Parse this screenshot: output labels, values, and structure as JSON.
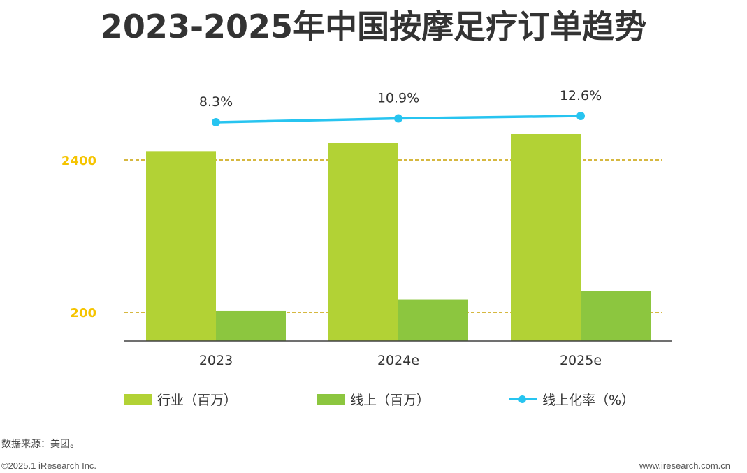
{
  "title": "2023-2025年中国按摩足疗订单趋势",
  "chart_data": {
    "type": "bar",
    "categories": [
      "2023",
      "2024e",
      "2025e"
    ],
    "series": [
      {
        "name": "行业（百万）",
        "type": "bar",
        "color": "#b2d235",
        "values": [
          2530,
          2650,
          2780
        ]
      },
      {
        "name": "线上（百万）",
        "type": "bar",
        "color": "#8cc63f",
        "values": [
          210,
          290,
          350
        ]
      },
      {
        "name": "线上化率（%）",
        "type": "line",
        "color": "#27c4f0",
        "values": [
          8.3,
          10.9,
          12.6
        ],
        "labels": [
          "8.3%",
          "10.9%",
          "12.6%"
        ]
      }
    ],
    "reference_lines": [
      {
        "value": 2400,
        "label": "2400"
      },
      {
        "value": 200,
        "label": "200"
      }
    ],
    "axis_break": true,
    "colors": {
      "reference_line": "#c8a000",
      "reference_label": "#f5c400",
      "axis": "#404040"
    }
  },
  "legend": {
    "items": [
      {
        "label": "行业（百万）"
      },
      {
        "label": "线上（百万）"
      },
      {
        "label": "线上化率（%）"
      }
    ]
  },
  "source": "数据来源：美团。",
  "footer": {
    "copyright": "©2025.1 iResearch Inc.",
    "website": "www.iresearch.com.cn"
  }
}
